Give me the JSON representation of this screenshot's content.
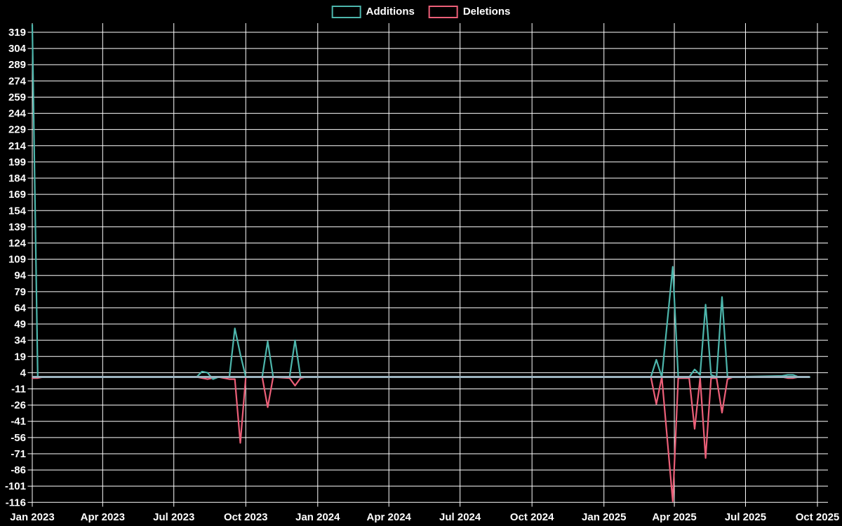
{
  "chart_data": {
    "type": "line",
    "title": "",
    "legend_position": "top-center",
    "grid": true,
    "colors": {
      "background": "#000000",
      "grid_line": "#ffffff",
      "tick_text": "#ffffff",
      "zero_baseline": "#9db4c0",
      "additions": "#4db6ac",
      "deletions": "#ec5f78"
    },
    "x_axis": {
      "range_start": "2023-01-01",
      "range_end": "2025-10-15",
      "ticks": [
        {
          "label": "Jan 2023",
          "date": "2023-01-01"
        },
        {
          "label": "Apr 2023",
          "date": "2023-04-01"
        },
        {
          "label": "Jul 2023",
          "date": "2023-07-01"
        },
        {
          "label": "Oct 2023",
          "date": "2023-10-01"
        },
        {
          "label": "Jan 2024",
          "date": "2024-01-01"
        },
        {
          "label": "Apr 2024",
          "date": "2024-04-01"
        },
        {
          "label": "Jul 2024",
          "date": "2024-07-01"
        },
        {
          "label": "Oct 2024",
          "date": "2024-10-01"
        },
        {
          "label": "Jan 2025",
          "date": "2025-01-01"
        },
        {
          "label": "Apr 2025",
          "date": "2025-04-01"
        },
        {
          "label": "Jul 2025",
          "date": "2025-07-01"
        },
        {
          "label": "Oct 2025",
          "date": "2025-10-01"
        }
      ]
    },
    "y_axis": {
      "tick_step": 15,
      "tick_max": 319,
      "tick_min": -116,
      "ticks": [
        319,
        304,
        289,
        274,
        259,
        244,
        229,
        214,
        199,
        184,
        169,
        154,
        139,
        124,
        109,
        94,
        79,
        64,
        49,
        34,
        19,
        4,
        -11,
        -26,
        -41,
        -56,
        -71,
        -86,
        -101,
        -116
      ]
    },
    "series": [
      {
        "name": "Additions",
        "color": "#4db6ac",
        "points": [
          [
            "2023-01-01",
            326
          ],
          [
            "2023-01-08",
            0
          ],
          [
            "2023-07-30",
            0
          ],
          [
            "2023-08-06",
            5
          ],
          [
            "2023-08-13",
            4
          ],
          [
            "2023-08-20",
            -2
          ],
          [
            "2023-08-27",
            0
          ],
          [
            "2023-09-10",
            0
          ],
          [
            "2023-09-17",
            45
          ],
          [
            "2023-09-24",
            21
          ],
          [
            "2023-10-01",
            0
          ],
          [
            "2023-10-22",
            0
          ],
          [
            "2023-10-29",
            33
          ],
          [
            "2023-11-05",
            0
          ],
          [
            "2023-11-26",
            0
          ],
          [
            "2023-12-03",
            34
          ],
          [
            "2023-12-10",
            0
          ],
          [
            "2025-03-02",
            0
          ],
          [
            "2025-03-09",
            16
          ],
          [
            "2025-03-16",
            0
          ],
          [
            "2025-03-30",
            102
          ],
          [
            "2025-04-06",
            0
          ],
          [
            "2025-04-20",
            0
          ],
          [
            "2025-04-27",
            7
          ],
          [
            "2025-05-04",
            2
          ],
          [
            "2025-05-11",
            67
          ],
          [
            "2025-05-18",
            2
          ],
          [
            "2025-05-25",
            0
          ],
          [
            "2025-06-01",
            74
          ],
          [
            "2025-06-08",
            0
          ],
          [
            "2025-08-17",
            1
          ],
          [
            "2025-08-24",
            2
          ],
          [
            "2025-08-31",
            2
          ],
          [
            "2025-09-07",
            0
          ],
          [
            "2025-09-21",
            0
          ]
        ]
      },
      {
        "name": "Deletions",
        "color": "#ec5f78",
        "points": [
          [
            "2023-01-01",
            -1
          ],
          [
            "2023-01-08",
            -1
          ],
          [
            "2023-01-15",
            0
          ],
          [
            "2023-07-30",
            0
          ],
          [
            "2023-08-06",
            -1
          ],
          [
            "2023-08-13",
            -2
          ],
          [
            "2023-08-20",
            -1
          ],
          [
            "2023-08-27",
            0
          ],
          [
            "2023-09-10",
            -2
          ],
          [
            "2023-09-17",
            -2
          ],
          [
            "2023-09-24",
            -61
          ],
          [
            "2023-10-01",
            0
          ],
          [
            "2023-10-22",
            0
          ],
          [
            "2023-10-29",
            -28
          ],
          [
            "2023-11-05",
            0
          ],
          [
            "2023-11-26",
            -1
          ],
          [
            "2023-12-03",
            -8
          ],
          [
            "2023-12-10",
            -1
          ],
          [
            "2023-12-17",
            0
          ],
          [
            "2025-03-02",
            0
          ],
          [
            "2025-03-09",
            -25
          ],
          [
            "2025-03-16",
            0
          ],
          [
            "2025-03-30",
            -115
          ],
          [
            "2025-04-06",
            -1
          ],
          [
            "2025-04-20",
            -1
          ],
          [
            "2025-04-27",
            -48
          ],
          [
            "2025-05-04",
            -1
          ],
          [
            "2025-05-11",
            -75
          ],
          [
            "2025-05-18",
            -1
          ],
          [
            "2025-05-25",
            -1
          ],
          [
            "2025-06-01",
            -33
          ],
          [
            "2025-06-08",
            -2
          ],
          [
            "2025-06-15",
            0
          ],
          [
            "2025-08-17",
            0
          ],
          [
            "2025-08-24",
            -1
          ],
          [
            "2025-08-31",
            -1
          ],
          [
            "2025-09-07",
            0
          ],
          [
            "2025-09-21",
            0
          ]
        ]
      }
    ]
  }
}
